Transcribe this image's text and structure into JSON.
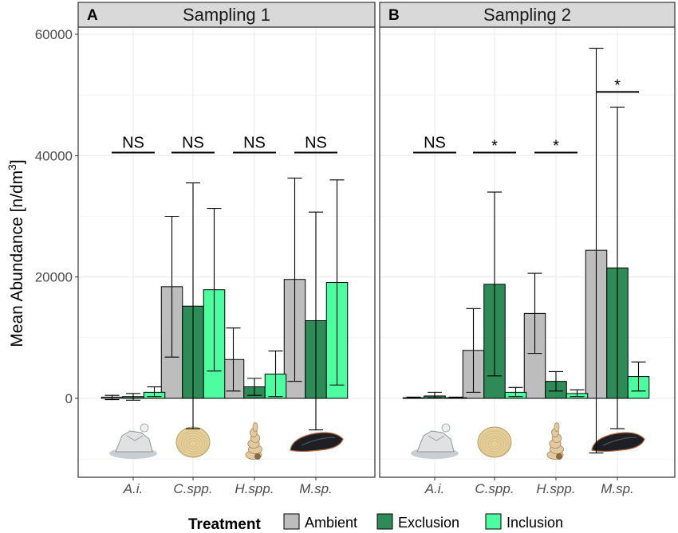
{
  "chart_data": {
    "type": "bar",
    "ylabel": "Mean Abundance [n/dm",
    "ylabel_sup": "3",
    "ylabel_close": "]",
    "ylim": [
      -13000,
      62000
    ],
    "yticks": [
      0,
      20000,
      40000,
      60000
    ],
    "categories": [
      "A.i.",
      "C.spp.",
      "H.spp.",
      "M.sp."
    ],
    "category_icons": [
      "barnacle-icon",
      "clam-icon",
      "snail-icon",
      "mussel-icon"
    ],
    "legend": {
      "title": "Treatment",
      "entries": [
        "Ambient",
        "Exclusion",
        "Inclusion"
      ]
    },
    "colors": {
      "Ambient": "#bdbdbd",
      "Exclusion": "#2e8b57",
      "Inclusion": "#4dfd9f"
    },
    "panels": [
      {
        "letter": "A",
        "title": "Sampling 1",
        "series": [
          {
            "name": "Ambient",
            "values": [
              200,
              18400,
              6400,
              19600
            ],
            "err_low": [
              -200,
              6800,
              1200,
              2800
            ],
            "err_high": [
              500,
              30000,
              11600,
              36300
            ]
          },
          {
            "name": "Exclusion",
            "values": [
              300,
              15200,
              1900,
              12800
            ],
            "err_low": [
              -300,
              -5000,
              500,
              -5200
            ],
            "err_high": [
              800,
              35500,
              3300,
              30700
            ]
          },
          {
            "name": "Inclusion",
            "values": [
              1000,
              17900,
              4000,
              19100
            ],
            "err_low": [
              300,
              4500,
              300,
              2200
            ],
            "err_high": [
              1900,
              31300,
              7800,
              36000
            ]
          }
        ],
        "significance": [
          "NS",
          "NS",
          "NS",
          "NS"
        ],
        "sig_y": [
          40500,
          40500,
          40500,
          40500
        ]
      },
      {
        "letter": "B",
        "title": "Sampling 2",
        "series": [
          {
            "name": "Ambient",
            "values": [
              100,
              7900,
              14000,
              24400
            ],
            "err_low": [
              0,
              1000,
              7400,
              -9000
            ],
            "err_high": [
              200,
              14800,
              20600,
              57700
            ]
          },
          {
            "name": "Exclusion",
            "values": [
              400,
              18800,
              2800,
              21500
            ],
            "err_low": [
              100,
              3700,
              1200,
              -5000
            ],
            "err_high": [
              1000,
              34000,
              4400,
              48000
            ]
          },
          {
            "name": "Inclusion",
            "values": [
              100,
              1000,
              800,
              3600
            ],
            "err_low": [
              0,
              300,
              300,
              1200
            ],
            "err_high": [
              200,
              1800,
              1400,
              6000
            ]
          }
        ],
        "significance": [
          "NS",
          "*",
          "*",
          "*"
        ],
        "sig_y": [
          40500,
          40500,
          40500,
          50500
        ]
      }
    ]
  }
}
